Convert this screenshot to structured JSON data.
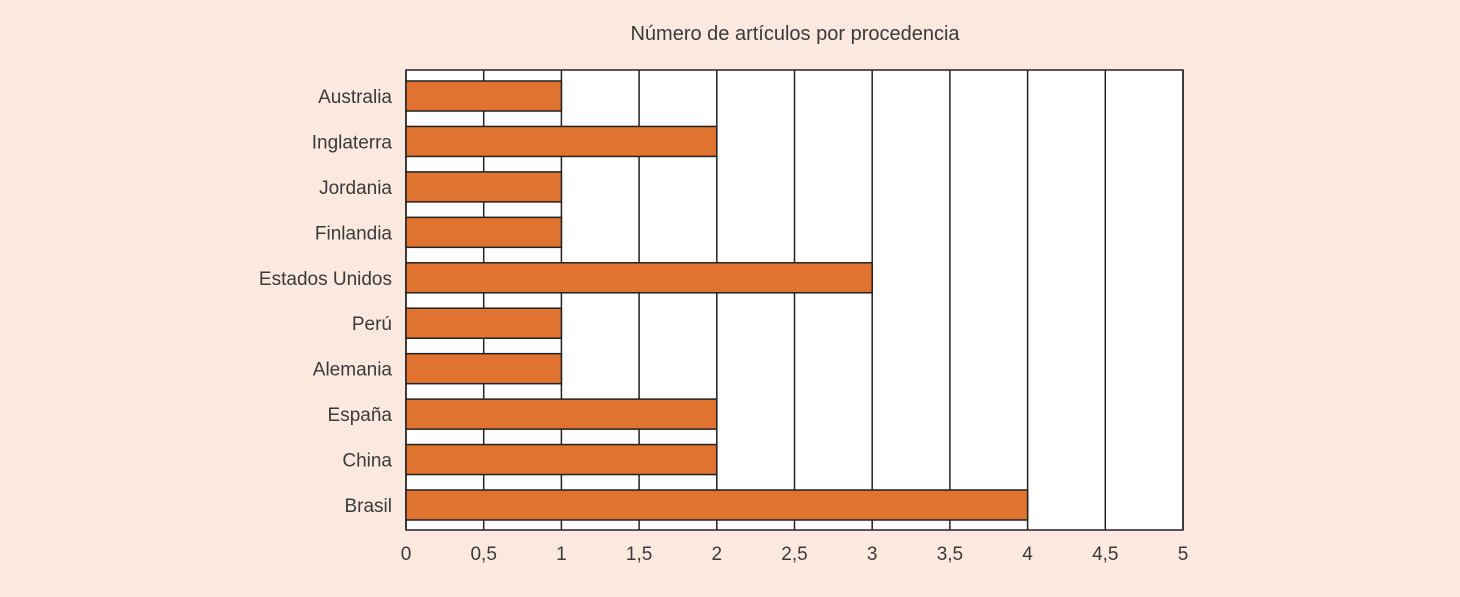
{
  "chart_data": {
    "type": "bar",
    "orientation": "horizontal",
    "title": "Número de artículos por procedencia",
    "xlabel": "",
    "ylabel": "",
    "categories": [
      "Australia",
      "Inglaterra",
      "Jordania",
      "Finlandia",
      "Estados Unidos",
      "Perú",
      "Alemania",
      "España",
      "China",
      "Brasil"
    ],
    "values": [
      1,
      2,
      1,
      1,
      3,
      1,
      1,
      2,
      2,
      4
    ],
    "xlim": [
      0,
      5
    ],
    "xticks": [
      0,
      0.5,
      1,
      1.5,
      2,
      2.5,
      3,
      3.5,
      4,
      4.5,
      5
    ],
    "xtick_labels": [
      "0",
      "0,5",
      "1",
      "1,5",
      "2",
      "2,5",
      "3",
      "3,5",
      "4",
      "4,5",
      "5"
    ],
    "grid": "vertical",
    "bar_color": "#e0732f",
    "background_color": "#fbe9df"
  }
}
